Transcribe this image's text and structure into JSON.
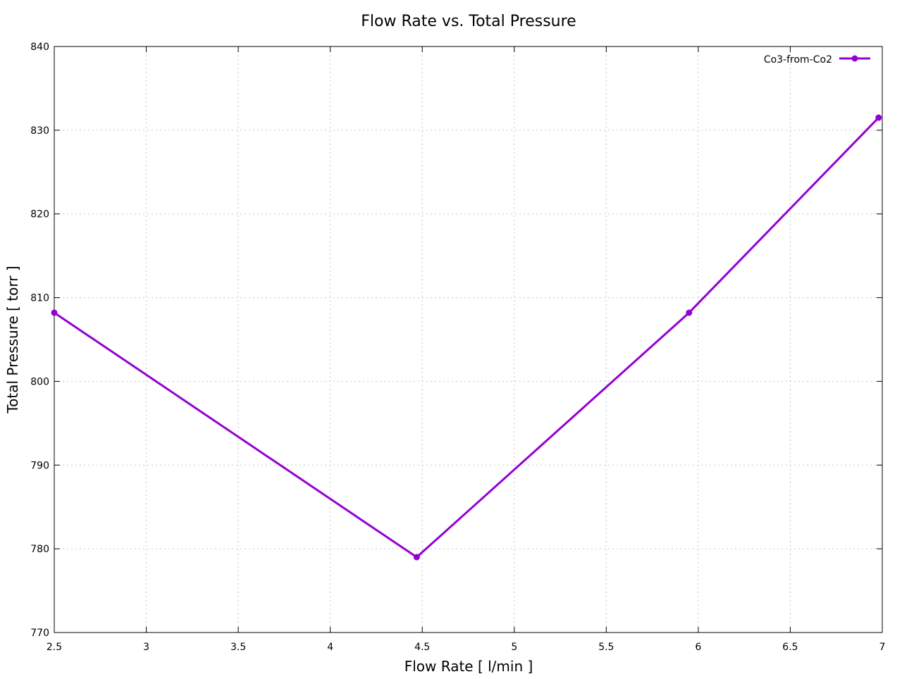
{
  "chart_data": {
    "type": "line",
    "title": "Flow Rate vs. Total Pressure",
    "xlabel": "Flow Rate [ l/min ]",
    "ylabel": "Total Pressure [ torr ]",
    "xlim": [
      2.5,
      7
    ],
    "ylim": [
      770,
      840
    ],
    "x_ticks": [
      "2.5",
      "3",
      "3.5",
      "4",
      "4.5",
      "5",
      "5.5",
      "6",
      "6.5",
      "7"
    ],
    "y_ticks": [
      "770",
      "780",
      "790",
      "800",
      "810",
      "820",
      "830",
      "840"
    ],
    "grid": true,
    "legend_position": "top-right",
    "series": [
      {
        "name": "Co3-from-Co2",
        "color": "#9400d3",
        "marker": "circle",
        "points": [
          {
            "x": 2.5,
            "y": 808.2
          },
          {
            "x": 4.47,
            "y": 779.0
          },
          {
            "x": 5.95,
            "y": 808.2
          },
          {
            "x": 6.98,
            "y": 831.5
          }
        ]
      }
    ]
  }
}
